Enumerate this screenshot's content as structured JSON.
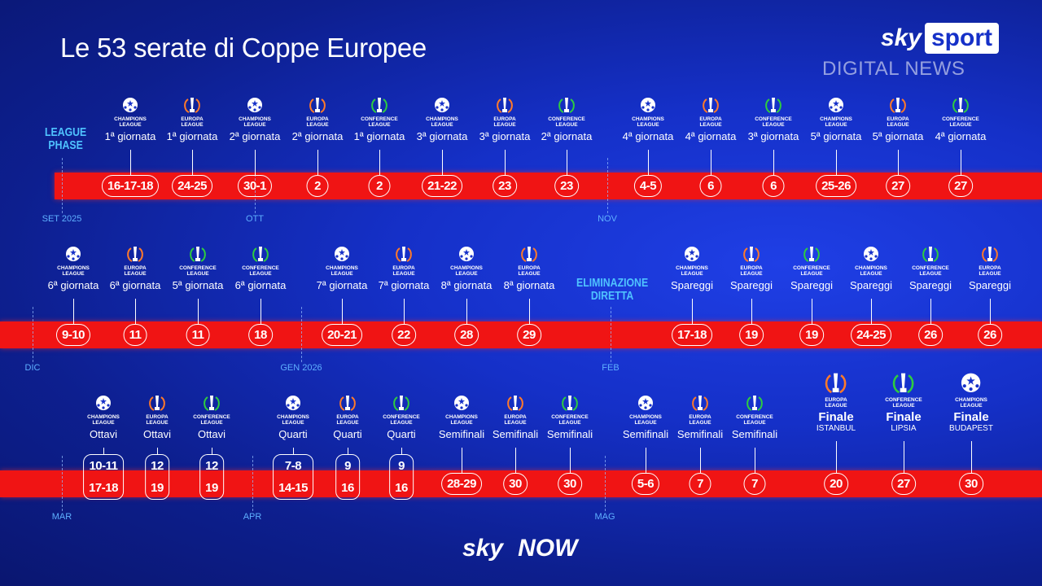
{
  "title": "Le 53 serate di Coppe Europee",
  "brand": {
    "sky": "sky",
    "sport": "sport",
    "digital_news": "DIGITAL NEWS"
  },
  "footer": {
    "sky": "sky",
    "now": "NOW"
  },
  "colors": {
    "bar": "#f01414",
    "background": "#1530c8",
    "champions": "#ffffff",
    "europa": "#ff7a2a",
    "conference": "#2ecc40"
  },
  "competitions": {
    "CL": [
      "CHAMPIONS",
      "LEAGUE"
    ],
    "EL": [
      "EUROPA",
      "LEAGUE"
    ],
    "COL": [
      "CONFERENCE",
      "LEAGUE"
    ]
  },
  "rows": [
    {
      "section": [
        "LEAGUE",
        "PHASE"
      ],
      "months": [
        "SET 2025",
        "OTT",
        "NOV"
      ],
      "items": [
        {
          "comp": "CL",
          "stage": "1ª giornata",
          "dates": [
            "16-17-18"
          ]
        },
        {
          "comp": "EL",
          "stage": "1ª giornata",
          "dates": [
            "24-25"
          ]
        },
        {
          "comp": "CL",
          "stage": "2ª giornata",
          "dates": [
            "30-1"
          ]
        },
        {
          "comp": "EL",
          "stage": "2ª giornata",
          "dates": [
            "2"
          ]
        },
        {
          "comp": "COL",
          "stage": "1ª giornata",
          "dates": [
            "2"
          ]
        },
        {
          "comp": "CL",
          "stage": "3ª giornata",
          "dates": [
            "21-22"
          ]
        },
        {
          "comp": "EL",
          "stage": "3ª giornata",
          "dates": [
            "23"
          ]
        },
        {
          "comp": "COL",
          "stage": "2ª giornata",
          "dates": [
            "23"
          ]
        },
        {
          "comp": "CL",
          "stage": "4ª giornata",
          "dates": [
            "4-5"
          ]
        },
        {
          "comp": "EL",
          "stage": "4ª giornata",
          "dates": [
            "6"
          ]
        },
        {
          "comp": "COL",
          "stage": "3ª giornata",
          "dates": [
            "6"
          ]
        },
        {
          "comp": "CL",
          "stage": "5ª giornata",
          "dates": [
            "25-26"
          ]
        },
        {
          "comp": "EL",
          "stage": "5ª giornata",
          "dates": [
            "27"
          ]
        },
        {
          "comp": "COL",
          "stage": "4ª giornata",
          "dates": [
            "27"
          ]
        }
      ]
    },
    {
      "section": [
        "ELIMINAZIONE",
        "DIRETTA"
      ],
      "months": [
        "DIC",
        "GEN 2026",
        "FEB"
      ],
      "items": [
        {
          "comp": "CL",
          "stage": "6ª giornata",
          "dates": [
            "9-10"
          ]
        },
        {
          "comp": "EL",
          "stage": "6ª giornata",
          "dates": [
            "11"
          ]
        },
        {
          "comp": "COL",
          "stage": "5ª giornata",
          "dates": [
            "11"
          ]
        },
        {
          "comp": "COL",
          "stage": "6ª giornata",
          "dates": [
            "18"
          ]
        },
        {
          "comp": "CL",
          "stage": "7ª giornata",
          "dates": [
            "20-21"
          ]
        },
        {
          "comp": "EL",
          "stage": "7ª giornata",
          "dates": [
            "22"
          ]
        },
        {
          "comp": "CL",
          "stage": "8ª giornata",
          "dates": [
            "28"
          ]
        },
        {
          "comp": "EL",
          "stage": "8ª giornata",
          "dates": [
            "29"
          ]
        },
        {
          "comp": "CL",
          "stage": "Spareggi",
          "dates": [
            "17-18"
          ]
        },
        {
          "comp": "EL",
          "stage": "Spareggi",
          "dates": [
            "19"
          ]
        },
        {
          "comp": "COL",
          "stage": "Spareggi",
          "dates": [
            "19"
          ]
        },
        {
          "comp": "CL",
          "stage": "Spareggi",
          "dates": [
            "24-25"
          ]
        },
        {
          "comp": "COL",
          "stage": "Spareggi",
          "dates": [
            "26"
          ]
        },
        {
          "comp": "EL",
          "stage": "Spareggi",
          "dates": [
            "26"
          ]
        }
      ]
    },
    {
      "months": [
        "MAR",
        "APR",
        "MAG"
      ],
      "items": [
        {
          "comp": "CL",
          "stage": "Ottavi",
          "dates": [
            "10-11",
            "17-18"
          ]
        },
        {
          "comp": "EL",
          "stage": "Ottavi",
          "dates": [
            "12",
            "19"
          ]
        },
        {
          "comp": "COL",
          "stage": "Ottavi",
          "dates": [
            "12",
            "19"
          ]
        },
        {
          "comp": "CL",
          "stage": "Quarti",
          "dates": [
            "7-8",
            "14-15"
          ]
        },
        {
          "comp": "EL",
          "stage": "Quarti",
          "dates": [
            "9",
            "16"
          ]
        },
        {
          "comp": "COL",
          "stage": "Quarti",
          "dates": [
            "9",
            "16"
          ]
        },
        {
          "comp": "CL",
          "stage": "Semifinali",
          "dates": [
            "28-29"
          ]
        },
        {
          "comp": "EL",
          "stage": "Semifinali",
          "dates": [
            "30"
          ]
        },
        {
          "comp": "COL",
          "stage": "Semifinali",
          "dates": [
            "30"
          ]
        },
        {
          "comp": "CL",
          "stage": "Semifinali",
          "dates": [
            "5-6"
          ]
        },
        {
          "comp": "EL",
          "stage": "Semifinali",
          "dates": [
            "7"
          ]
        },
        {
          "comp": "COL",
          "stage": "Semifinali",
          "dates": [
            "7"
          ]
        },
        {
          "comp": "EL",
          "stage": "Finale",
          "city": "ISTANBUL",
          "dates": [
            "20"
          ]
        },
        {
          "comp": "COL",
          "stage": "Finale",
          "city": "LIPSIA",
          "dates": [
            "27"
          ]
        },
        {
          "comp": "CL",
          "stage": "Finale",
          "city": "BUDAPEST",
          "dates": [
            "30"
          ]
        }
      ]
    }
  ]
}
